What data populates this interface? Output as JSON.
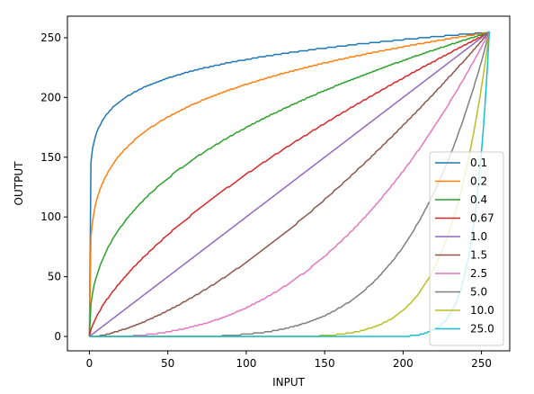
{
  "chart_data": {
    "type": "line",
    "title": "",
    "xlabel": "INPUT",
    "ylabel": "OUTPUT",
    "xlim": [
      -14,
      268
    ],
    "ylim": [
      -12,
      268
    ],
    "xticks": [
      0,
      50,
      100,
      150,
      200,
      250
    ],
    "yticks": [
      0,
      50,
      100,
      150,
      200,
      250
    ],
    "x_domain": [
      0,
      255
    ],
    "legend_position": "lower right",
    "grid": false,
    "series": [
      {
        "name": "0.1",
        "gamma": 0.1,
        "color": "#1f77b4"
      },
      {
        "name": "0.2",
        "gamma": 0.2,
        "color": "#ff7f0e"
      },
      {
        "name": "0.4",
        "gamma": 0.4,
        "color": "#2ca02c"
      },
      {
        "name": "0.67",
        "gamma": 0.67,
        "color": "#d62728"
      },
      {
        "name": "1.0",
        "gamma": 1.0,
        "color": "#9467bd"
      },
      {
        "name": "1.5",
        "gamma": 1.5,
        "color": "#8c564b"
      },
      {
        "name": "2.5",
        "gamma": 2.5,
        "color": "#e377c2"
      },
      {
        "name": "5.0",
        "gamma": 5.0,
        "color": "#7f7f7f"
      },
      {
        "name": "10.0",
        "gamma": 10.0,
        "color": "#bcbd22"
      },
      {
        "name": "25.0",
        "gamma": 25.0,
        "color": "#17becf"
      }
    ]
  }
}
